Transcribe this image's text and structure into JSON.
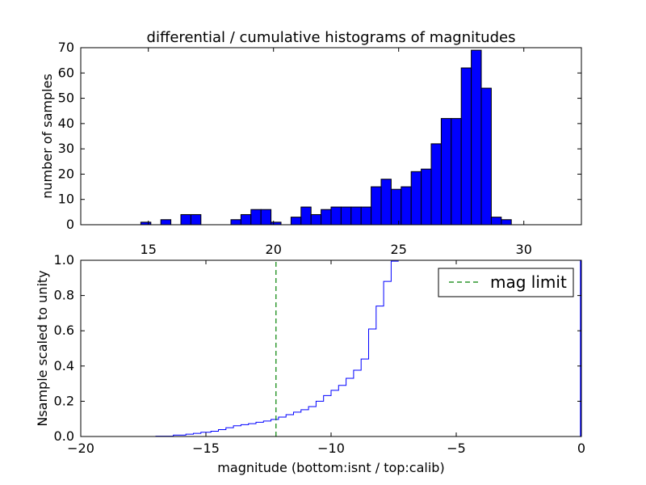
{
  "chart_data": [
    {
      "type": "bar",
      "title": "differential / cumulative histograms of magnitudes",
      "xlabel": "",
      "ylabel": "number of samples",
      "xlim": [
        12.3,
        32.3
      ],
      "ylim": [
        0,
        70
      ],
      "xticks": [
        15,
        20,
        25,
        30
      ],
      "yticks": [
        0,
        10,
        20,
        30,
        40,
        50,
        60,
        70
      ],
      "bin_width": 0.4,
      "bar_color": "#0000ff",
      "bins": [
        {
          "left": 14.7,
          "count": 1
        },
        {
          "left": 15.5,
          "count": 2
        },
        {
          "left": 16.3,
          "count": 4
        },
        {
          "left": 16.7,
          "count": 4
        },
        {
          "left": 18.3,
          "count": 2
        },
        {
          "left": 18.7,
          "count": 4
        },
        {
          "left": 19.1,
          "count": 6
        },
        {
          "left": 19.5,
          "count": 6
        },
        {
          "left": 19.9,
          "count": 1
        },
        {
          "left": 20.7,
          "count": 3
        },
        {
          "left": 21.1,
          "count": 7
        },
        {
          "left": 21.5,
          "count": 4
        },
        {
          "left": 21.9,
          "count": 6
        },
        {
          "left": 22.3,
          "count": 7
        },
        {
          "left": 22.7,
          "count": 7
        },
        {
          "left": 23.1,
          "count": 7
        },
        {
          "left": 23.5,
          "count": 7
        },
        {
          "left": 23.9,
          "count": 15
        },
        {
          "left": 24.3,
          "count": 18
        },
        {
          "left": 24.7,
          "count": 14
        },
        {
          "left": 25.1,
          "count": 15
        },
        {
          "left": 25.5,
          "count": 21
        },
        {
          "left": 25.9,
          "count": 22
        },
        {
          "left": 26.3,
          "count": 32
        },
        {
          "left": 26.7,
          "count": 42
        },
        {
          "left": 27.1,
          "count": 42
        },
        {
          "left": 27.5,
          "count": 62
        },
        {
          "left": 27.9,
          "count": 69
        },
        {
          "left": 28.3,
          "count": 54
        },
        {
          "left": 28.7,
          "count": 3
        },
        {
          "left": 29.1,
          "count": 2
        }
      ]
    },
    {
      "type": "line",
      "title": "",
      "xlabel": "magnitude (bottom:isnt / top:calib)",
      "ylabel": "Nsample scaled to unity",
      "xlim": [
        -20,
        0
      ],
      "ylim": [
        0,
        1.0
      ],
      "xticks": [
        -20,
        -15,
        -10,
        -5,
        0
      ],
      "yticks": [
        0.0,
        0.2,
        0.4,
        0.6,
        0.8,
        1.0
      ],
      "ytick_labels": [
        "0.0",
        "0.2",
        "0.4",
        "0.6",
        "0.8",
        "1.0"
      ],
      "legend_position": "top-right",
      "series": [
        {
          "color": "#0000ff",
          "style": "step",
          "x": [
            -20,
            -17.0,
            -16.3,
            -15.8,
            -15.5,
            -15.2,
            -14.8,
            -14.5,
            -14.2,
            -13.9,
            -13.6,
            -13.3,
            -13.0,
            -12.7,
            -12.4,
            -12.1,
            -11.8,
            -11.5,
            -11.2,
            -10.9,
            -10.6,
            -10.3,
            -10.0,
            -9.7,
            -9.4,
            -9.1,
            -8.8,
            -8.5,
            -8.2,
            -7.9,
            -7.6
          ],
          "y": [
            0.0,
            0.002,
            0.008,
            0.013,
            0.018,
            0.024,
            0.03,
            0.039,
            0.05,
            0.061,
            0.067,
            0.073,
            0.081,
            0.088,
            0.097,
            0.11,
            0.124,
            0.138,
            0.152,
            0.17,
            0.2,
            0.232,
            0.262,
            0.29,
            0.33,
            0.376,
            0.44,
            0.61,
            0.74,
            0.88,
            0.995
          ]
        },
        {
          "name": "mag limit",
          "color": "#008000",
          "style": "dashed-vertical",
          "x": [
            -12.2,
            -12.2
          ],
          "y": [
            0,
            1.0
          ]
        }
      ],
      "edge_marker": {
        "x": 0,
        "y": [
          0,
          1.0
        ],
        "color": "#0000ff"
      }
    }
  ]
}
